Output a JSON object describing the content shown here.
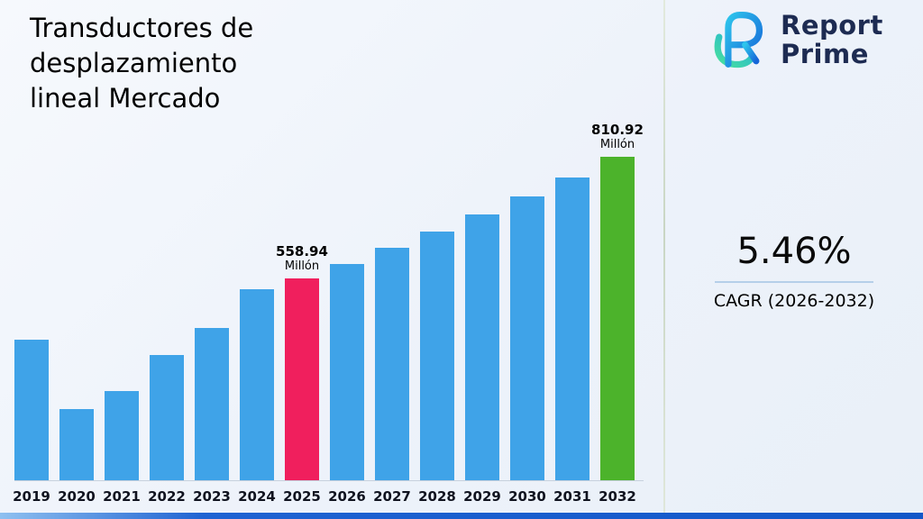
{
  "title": {
    "lines": [
      "Transductores de",
      "desplazamiento",
      "lineal Mercado"
    ]
  },
  "logo": {
    "icon": "report-prime-monogram",
    "line1": "Report",
    "line2": "Prime"
  },
  "cagr": {
    "value": "5.46%",
    "label": "CAGR (2026-2032)"
  },
  "chart_data": {
    "type": "bar",
    "title": "Transductores de desplazamiento lineal Mercado",
    "unit": "Millón",
    "categories": [
      "2019",
      "2020",
      "2021",
      "2022",
      "2023",
      "2024",
      "2025",
      "2026",
      "2027",
      "2028",
      "2029",
      "2030",
      "2031",
      "2032"
    ],
    "values": [
      432,
      288,
      326,
      400,
      456,
      536,
      558.94,
      589.45,
      621.63,
      655.57,
      691.37,
      729.1,
      768.91,
      810.92
    ],
    "labeled_points": [
      {
        "category": "2025",
        "value_text": "558.94",
        "unit_text": "Millón"
      },
      {
        "category": "2032",
        "value_text": "810.92",
        "unit_text": "Millón"
      }
    ],
    "bar_colors": [
      "blue",
      "blue",
      "blue",
      "blue",
      "blue",
      "blue",
      "pink",
      "blue",
      "blue",
      "blue",
      "blue",
      "blue",
      "blue",
      "green"
    ],
    "colors": {
      "blue": "#3fa3e8",
      "pink": "#f01f5d",
      "green": "#4cb32b"
    },
    "xlabel": "",
    "ylabel": "",
    "ylim": [
      139,
      811
    ],
    "grid": false,
    "legend": false,
    "annotation_note": "Only 2025 and 2032 carry value labels; other values estimated from bar heights"
  }
}
